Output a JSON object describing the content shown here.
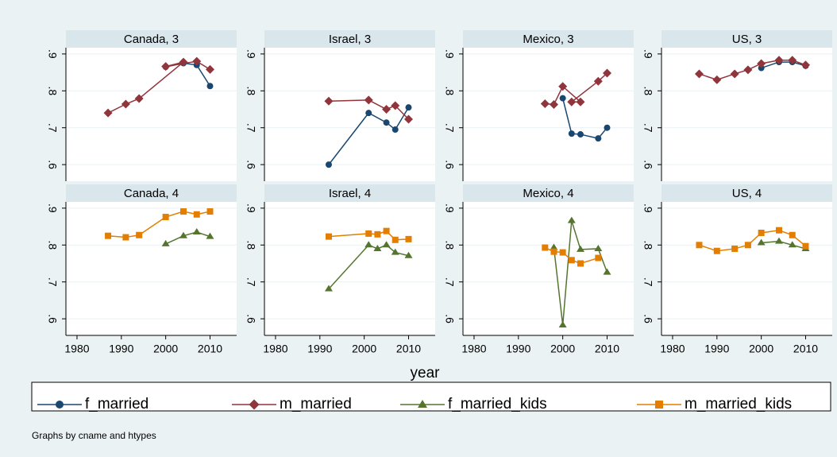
{
  "chart_data": {
    "type": "line",
    "x_title": "year",
    "note": "Graphs by cname and htypes",
    "xlim": [
      1977.5,
      2016
    ],
    "ylim": [
      0.555,
      0.917
    ],
    "xticks": [
      1980,
      1990,
      2000,
      2010
    ],
    "yticks": [
      {
        "value": 0.6,
        "label": ".6"
      },
      {
        "value": 0.7,
        "label": ".7"
      },
      {
        "value": 0.8,
        "label": ".8"
      },
      {
        "value": 0.9,
        "label": ".9"
      }
    ],
    "grid": true,
    "series": [
      {
        "name": "f_married",
        "color": "#1a476f",
        "marker": "circle"
      },
      {
        "name": "m_married",
        "color": "#90353b",
        "marker": "diamond"
      },
      {
        "name": "f_married_kids",
        "color": "#55752f",
        "marker": "triangle"
      },
      {
        "name": "m_married_kids",
        "color": "#e37e00",
        "marker": "square"
      }
    ],
    "panels": [
      {
        "title": "Canada, 3",
        "series": [
          {
            "name": "f_married",
            "x": [
              2000,
              2004,
              2007,
              2010
            ],
            "values": [
              0.865,
              0.875,
              0.87,
              0.813
            ]
          },
          {
            "name": "m_married",
            "x": [
              1987,
              1991,
              1994,
              2004,
              2000,
              2007,
              2010
            ],
            "values": [
              0.74,
              0.764,
              0.779,
              0.878,
              0.866,
              0.88,
              0.858
            ]
          }
        ]
      },
      {
        "title": "Israel, 3",
        "series": [
          {
            "name": "f_married",
            "x": [
              1992,
              2001,
              2005,
              2007,
              2010
            ],
            "values": [
              0.6,
              0.74,
              0.714,
              0.695,
              0.755
            ]
          },
          {
            "name": "m_married",
            "x": [
              1992,
              2001,
              2005,
              2007,
              2010
            ],
            "values": [
              0.772,
              0.775,
              0.75,
              0.76,
              0.723
            ]
          }
        ]
      },
      {
        "title": "Mexico, 3",
        "series": [
          {
            "name": "f_married",
            "x": [
              2000,
              2002,
              2004,
              2008,
              2010
            ],
            "values": [
              0.78,
              0.684,
              0.682,
              0.671,
              0.7
            ]
          },
          {
            "name": "m_married",
            "x": [
              1996,
              1998,
              2000,
              2004,
              2002,
              2008,
              2010
            ],
            "values": [
              0.765,
              0.763,
              0.812,
              0.77,
              0.77,
              0.826,
              0.848
            ]
          }
        ]
      },
      {
        "title": "US, 3",
        "series": [
          {
            "name": "f_married",
            "x": [
              2000,
              2004,
              2007,
              2010
            ],
            "values": [
              0.862,
              0.878,
              0.878,
              0.868
            ]
          },
          {
            "name": "m_married",
            "x": [
              1986,
              1990,
              1994,
              1997,
              2000,
              2004,
              2007,
              2010
            ],
            "values": [
              0.846,
              0.83,
              0.846,
              0.857,
              0.874,
              0.883,
              0.883,
              0.87
            ]
          }
        ]
      },
      {
        "title": "Canada, 4",
        "series": [
          {
            "name": "f_married_kids",
            "x": [
              2000,
              2004,
              2007,
              2010
            ],
            "values": [
              0.803,
              0.825,
              0.835,
              0.823
            ]
          },
          {
            "name": "m_married_kids",
            "x": [
              1987,
              1991,
              1994,
              2000,
              2004,
              2007,
              2010
            ],
            "values": [
              0.825,
              0.821,
              0.827,
              0.876,
              0.891,
              0.883,
              0.891
            ]
          }
        ]
      },
      {
        "title": "Israel, 4",
        "series": [
          {
            "name": "f_married_kids",
            "x": [
              1992,
              2001,
              2003,
              2005,
              2007,
              2010
            ],
            "values": [
              0.681,
              0.8,
              0.79,
              0.8,
              0.78,
              0.771
            ]
          },
          {
            "name": "m_married_kids",
            "x": [
              1992,
              2001,
              2003,
              2005,
              2007,
              2010
            ],
            "values": [
              0.823,
              0.831,
              0.829,
              0.838,
              0.814,
              0.816
            ]
          }
        ]
      },
      {
        "title": "Mexico, 4",
        "series": [
          {
            "name": "f_married_kids",
            "x": [
              1998,
              2000,
              2002,
              2004,
              2008,
              2010
            ],
            "values": [
              0.793,
              0.583,
              0.866,
              0.788,
              0.79,
              0.726
            ]
          },
          {
            "name": "m_married_kids",
            "x": [
              1996,
              1998,
              2000,
              2002,
              2004,
              2008
            ],
            "values": [
              0.793,
              0.782,
              0.78,
              0.759,
              0.75,
              0.765
            ]
          }
        ]
      },
      {
        "title": "US, 4",
        "series": [
          {
            "name": "f_married_kids",
            "x": [
              2000,
              2004,
              2007,
              2010
            ],
            "values": [
              0.806,
              0.81,
              0.8,
              0.79
            ]
          },
          {
            "name": "m_married_kids",
            "x": [
              1986,
              1990,
              1994,
              1997,
              2000,
              2004,
              2007,
              2010
            ],
            "values": [
              0.8,
              0.784,
              0.79,
              0.8,
              0.833,
              0.84,
              0.827,
              0.797
            ]
          }
        ]
      }
    ]
  }
}
